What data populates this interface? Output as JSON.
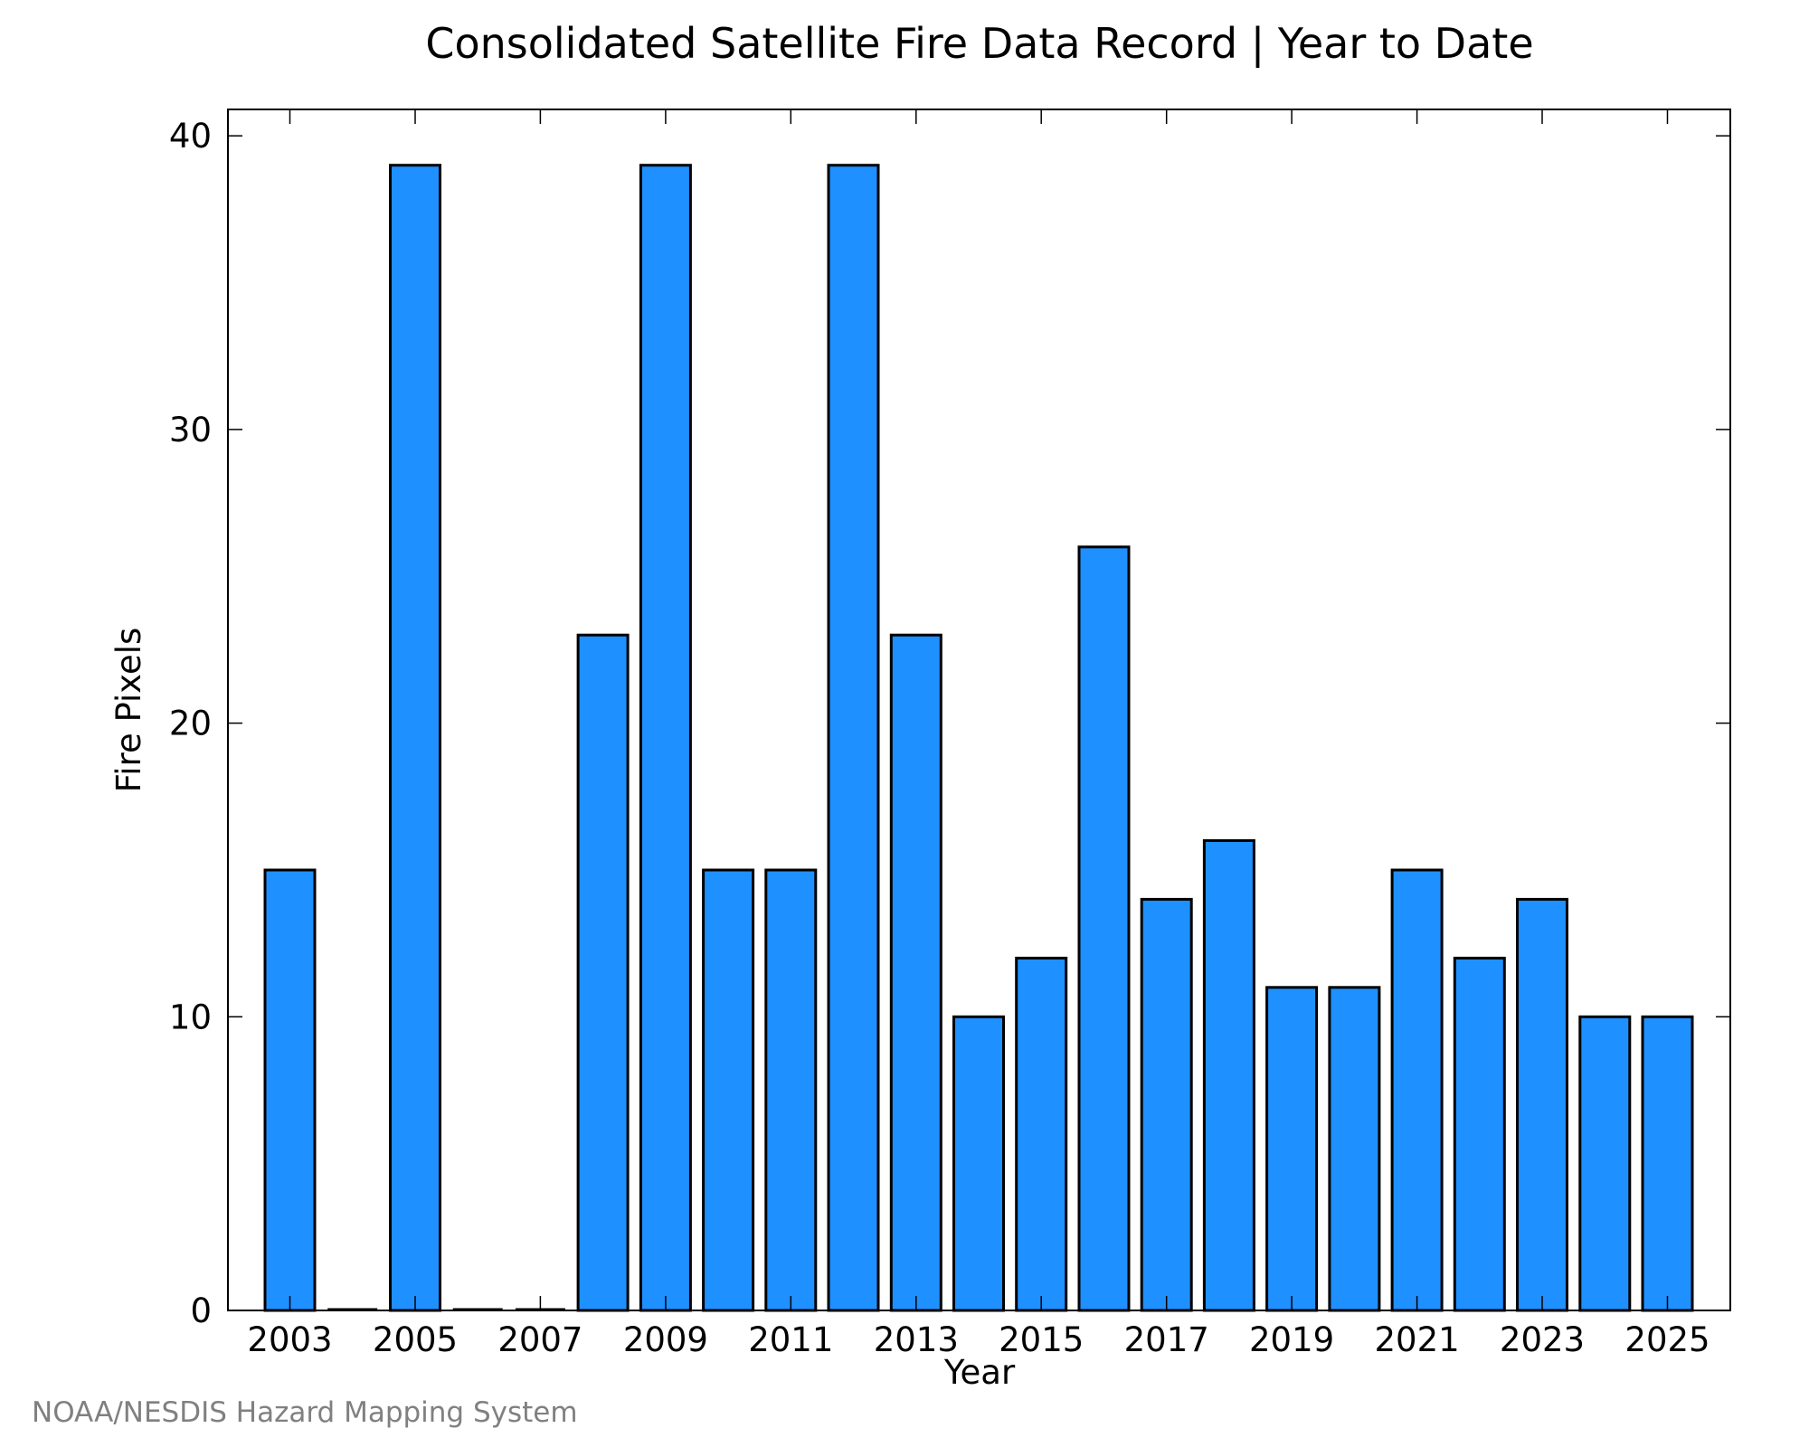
{
  "chart_data": {
    "type": "bar",
    "title": "Consolidated Satellite Fire Data Record | Year to Date",
    "xlabel": "Year",
    "ylabel": "Fire Pixels",
    "categories": [
      "2003",
      "2004",
      "2005",
      "2006",
      "2007",
      "2008",
      "2009",
      "2010",
      "2011",
      "2012",
      "2013",
      "2014",
      "2015",
      "2016",
      "2017",
      "2018",
      "2019",
      "2020",
      "2021",
      "2022",
      "2023",
      "2024",
      "2025"
    ],
    "values": [
      15,
      0,
      39,
      0,
      0,
      23,
      39,
      15,
      15,
      39,
      23,
      10,
      12,
      26,
      14,
      16,
      11,
      11,
      15,
      12,
      14,
      10,
      10
    ],
    "x_tick_labels": [
      "2003",
      "2005",
      "2007",
      "2009",
      "2011",
      "2013",
      "2015",
      "2017",
      "2019",
      "2021",
      "2023",
      "2025"
    ],
    "y_ticks": [
      0,
      10,
      20,
      30,
      40
    ],
    "ylim": [
      0,
      40.9
    ],
    "grid": false,
    "legend": "none",
    "bar_color": "#1e90ff",
    "edge_color": "#000000"
  },
  "footer": {
    "credit": "NOAA/NESDIS Hazard Mapping System"
  }
}
